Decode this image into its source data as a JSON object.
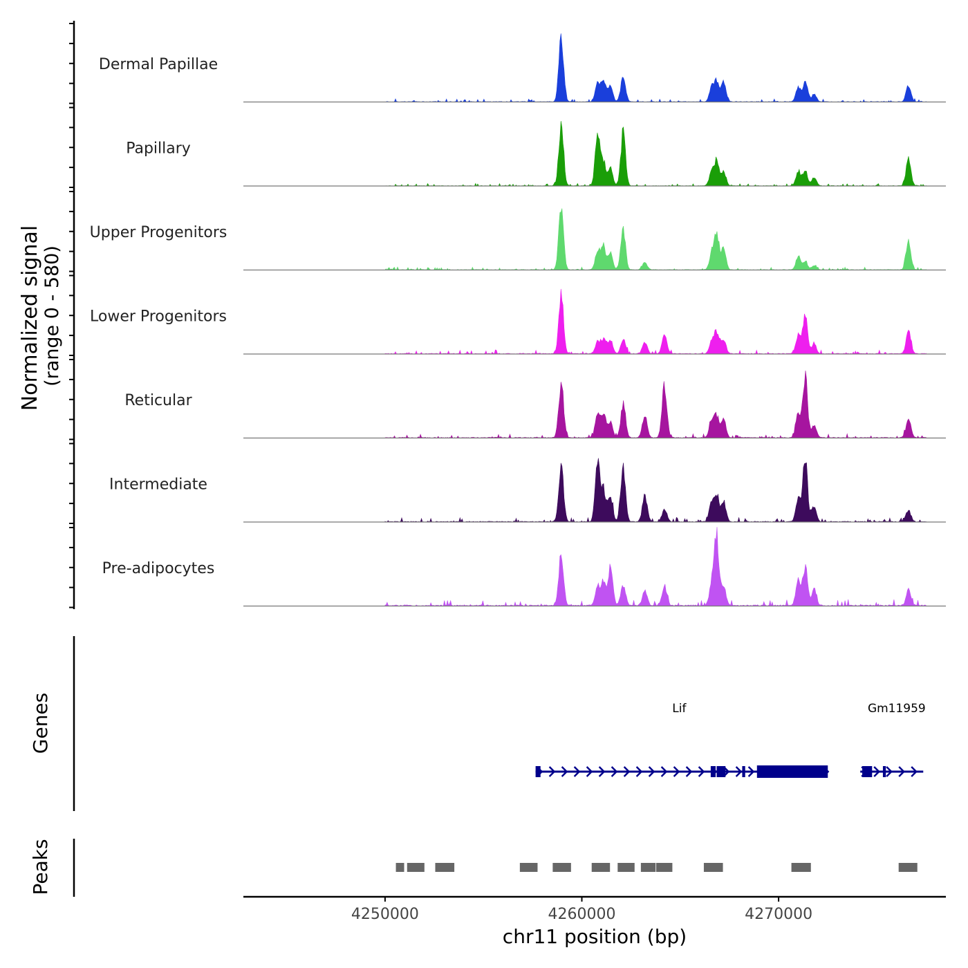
{
  "chart_data": {
    "type": "area",
    "title": "",
    "ylabel_line1": "Normalized signal",
    "ylabel_line2": "(range 0 - 580)",
    "xlabel": "chr11 position (bp)",
    "xlim": [
      4242800,
      4278500
    ],
    "xticks": [
      4250000,
      4260000,
      4270000
    ],
    "xtick_labels": [
      "4250000",
      "4260000",
      "4270000"
    ],
    "signal_range": [
      0,
      580
    ],
    "track_start": 4250000,
    "track_end": 4277500,
    "peak_positions": [
      4258950,
      4260800,
      4261100,
      4261450,
      4262100,
      4263200,
      4264200,
      4266600,
      4266850,
      4267200,
      4271000,
      4271350,
      4271800,
      4276600
    ],
    "tracks": [
      {
        "name": "Dermal Papillae",
        "color": "#1a3fdb",
        "baseline": 18,
        "peaks": [
          0,
          118,
          32,
          42,
          30,
          48,
          0,
          0,
          26,
          36,
          36,
          28,
          34,
          14,
          30
        ]
      },
      {
        "name": "Papillary",
        "color": "#1a9e08",
        "baseline": 15,
        "peaks": [
          0,
          115,
          96,
          44,
          32,
          96,
          0,
          0,
          26,
          44,
          26,
          28,
          28,
          16,
          52
        ]
      },
      {
        "name": "Upper Progenitors",
        "color": "#5fd96e",
        "baseline": 18,
        "peaks": [
          0,
          118,
          36,
          42,
          30,
          72,
          14,
          0,
          28,
          66,
          40,
          24,
          14,
          8,
          50
        ]
      },
      {
        "name": "Lower Progenitors",
        "color": "#ee1fee",
        "baseline": 24,
        "peaks": [
          0,
          112,
          22,
          28,
          26,
          28,
          22,
          36,
          24,
          40,
          28,
          34,
          74,
          18,
          40
        ]
      },
      {
        "name": "Reticular",
        "color": "#a6159f",
        "baseline": 26,
        "peaks": [
          0,
          104,
          46,
          42,
          30,
          66,
          44,
          96,
          30,
          40,
          34,
          44,
          112,
          24,
          34
        ]
      },
      {
        "name": "Intermediate",
        "color": "#3d0b5c",
        "baseline": 26,
        "peaks": [
          0,
          104,
          104,
          58,
          48,
          104,
          50,
          24,
          34,
          46,
          40,
          42,
          112,
          28,
          22
        ]
      },
      {
        "name": "Pre-adipocytes",
        "color": "#c053f2",
        "baseline": 40,
        "peaks": [
          0,
          96,
          36,
          40,
          72,
          40,
          30,
          36,
          40,
          130,
          36,
          48,
          70,
          30,
          28
        ]
      }
    ],
    "genes": [
      {
        "name": "Lif",
        "start": 4257650,
        "end": 4272500,
        "strand": "+",
        "label_position": 4264950,
        "exons": [
          [
            4257650,
            4257900
          ],
          [
            4266550,
            4266800
          ],
          [
            4266850,
            4267300
          ],
          [
            4268150,
            4268300
          ],
          [
            4268900,
            4272500
          ]
        ]
      },
      {
        "name": "Gm11959",
        "start": 4274150,
        "end": 4277350,
        "strand": "+",
        "label_position": 4276000,
        "exons": [
          [
            4274250,
            4274750
          ],
          [
            4275300,
            4275450
          ]
        ]
      }
    ],
    "peaks": [
      [
        4250550,
        4250970
      ],
      [
        4251120,
        4252000
      ],
      [
        4252550,
        4253520
      ],
      [
        4256850,
        4257750
      ],
      [
        4258520,
        4259450
      ],
      [
        4260500,
        4261430
      ],
      [
        4261820,
        4262680
      ],
      [
        4263000,
        4263750
      ],
      [
        4263780,
        4264600
      ],
      [
        4266200,
        4267170
      ],
      [
        4270650,
        4271640
      ],
      [
        4276100,
        4277050
      ]
    ],
    "panel_labels": {
      "genes": "Genes",
      "peaks": "Peaks"
    }
  }
}
